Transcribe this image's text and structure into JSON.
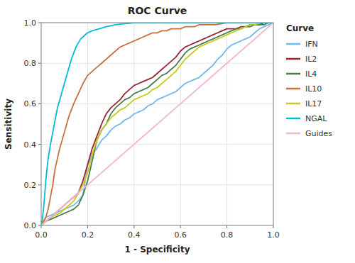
{
  "chart_data": {
    "type": "line",
    "title": "ROC Curve",
    "x_label": "1 - Specificity",
    "y_label": "Sensitivity",
    "xlim": [
      0.0,
      1.0
    ],
    "ylim": [
      0.0,
      1.0
    ],
    "xticks": [
      {
        "value": 0.0,
        "label": "0.0"
      },
      0.2,
      0.4,
      0.6,
      0.8,
      {
        "value": 1.0,
        "label": "1.0"
      }
    ],
    "yticks": [
      {
        "value": 0.0,
        "label": "0.0"
      },
      0.2,
      0.4,
      0.6,
      0.8,
      {
        "value": 1.0,
        "label": "1.0"
      }
    ],
    "grid": true,
    "legend": "right",
    "legend_title": "Curve",
    "series": [
      {
        "name": "IFN",
        "color": "#72b8e8",
        "x": [
          0,
          0.02,
          0.04,
          0.06,
          0.08,
          0.1,
          0.12,
          0.14,
          0.16,
          0.18,
          0.2,
          0.22,
          0.24,
          0.26,
          0.28,
          0.3,
          0.32,
          0.34,
          0.36,
          0.38,
          0.4,
          0.42,
          0.44,
          0.46,
          0.48,
          0.5,
          0.52,
          0.54,
          0.56,
          0.58,
          0.6,
          0.62,
          0.64,
          0.66,
          0.68,
          0.7,
          0.72,
          0.74,
          0.76,
          0.78,
          0.8,
          0.82,
          0.84,
          0.86,
          0.88,
          0.9,
          0.92,
          0.94,
          0.96,
          0.98,
          1.0
        ],
        "values": [
          0,
          0.04,
          0.05,
          0.06,
          0.07,
          0.08,
          0.09,
          0.1,
          0.12,
          0.15,
          0.3,
          0.35,
          0.38,
          0.42,
          0.44,
          0.47,
          0.49,
          0.5,
          0.52,
          0.53,
          0.55,
          0.56,
          0.57,
          0.59,
          0.6,
          0.62,
          0.63,
          0.64,
          0.65,
          0.66,
          0.68,
          0.7,
          0.71,
          0.72,
          0.73,
          0.75,
          0.77,
          0.79,
          0.82,
          0.84,
          0.87,
          0.89,
          0.9,
          0.91,
          0.92,
          0.93,
          0.95,
          0.97,
          0.98,
          0.99,
          1.0
        ]
      },
      {
        "name": "IL2",
        "color": "#9b2335",
        "x": [
          0,
          0.01,
          0.02,
          0.04,
          0.06,
          0.08,
          0.1,
          0.12,
          0.14,
          0.16,
          0.18,
          0.2,
          0.22,
          0.24,
          0.26,
          0.28,
          0.3,
          0.32,
          0.34,
          0.36,
          0.38,
          0.4,
          0.42,
          0.44,
          0.46,
          0.48,
          0.5,
          0.52,
          0.54,
          0.56,
          0.58,
          0.6,
          0.62,
          0.64,
          0.66,
          0.68,
          0.7,
          0.72,
          0.74,
          0.76,
          0.78,
          0.8,
          0.82,
          0.84,
          0.86,
          0.88,
          0.9,
          0.92,
          0.94,
          0.96,
          1.0
        ],
        "values": [
          0,
          0.01,
          0.02,
          0.04,
          0.06,
          0.08,
          0.1,
          0.12,
          0.14,
          0.16,
          0.22,
          0.3,
          0.38,
          0.44,
          0.5,
          0.55,
          0.58,
          0.6,
          0.62,
          0.65,
          0.67,
          0.69,
          0.7,
          0.71,
          0.72,
          0.73,
          0.75,
          0.77,
          0.79,
          0.81,
          0.83,
          0.86,
          0.88,
          0.89,
          0.9,
          0.91,
          0.92,
          0.93,
          0.94,
          0.95,
          0.96,
          0.97,
          0.97,
          0.97,
          0.98,
          0.98,
          0.99,
          0.99,
          0.99,
          1.0,
          1.0
        ]
      },
      {
        "name": "IL4",
        "color": "#4a7c4e",
        "x": [
          0,
          0.01,
          0.02,
          0.04,
          0.06,
          0.08,
          0.1,
          0.12,
          0.14,
          0.16,
          0.18,
          0.2,
          0.22,
          0.24,
          0.26,
          0.28,
          0.3,
          0.32,
          0.34,
          0.36,
          0.38,
          0.4,
          0.42,
          0.44,
          0.46,
          0.48,
          0.5,
          0.52,
          0.54,
          0.56,
          0.58,
          0.6,
          0.62,
          0.64,
          0.66,
          0.68,
          0.7,
          0.72,
          0.74,
          0.76,
          0.78,
          0.8,
          0.82,
          0.84,
          0.86,
          0.88,
          0.9,
          0.92,
          0.94,
          0.96,
          0.98,
          1.0
        ],
        "values": [
          0,
          0.01,
          0.02,
          0.03,
          0.04,
          0.05,
          0.06,
          0.07,
          0.08,
          0.1,
          0.15,
          0.22,
          0.32,
          0.42,
          0.47,
          0.5,
          0.55,
          0.58,
          0.6,
          0.62,
          0.63,
          0.65,
          0.66,
          0.67,
          0.68,
          0.7,
          0.72,
          0.74,
          0.75,
          0.77,
          0.79,
          0.82,
          0.85,
          0.87,
          0.88,
          0.89,
          0.9,
          0.91,
          0.92,
          0.93,
          0.94,
          0.95,
          0.96,
          0.97,
          0.97,
          0.98,
          0.98,
          0.99,
          0.99,
          0.99,
          1.0,
          1.0
        ]
      },
      {
        "name": "IL10",
        "color": "#c87040",
        "x": [
          0,
          0.01,
          0.02,
          0.03,
          0.04,
          0.05,
          0.06,
          0.08,
          0.1,
          0.12,
          0.14,
          0.16,
          0.18,
          0.2,
          0.22,
          0.24,
          0.26,
          0.28,
          0.3,
          0.32,
          0.34,
          0.36,
          0.38,
          0.4,
          0.42,
          0.44,
          0.46,
          0.48,
          0.5,
          0.52,
          0.54,
          0.56,
          0.58,
          0.6,
          0.62,
          0.64,
          0.66,
          0.68,
          0.7,
          0.75,
          0.8,
          1.0
        ],
        "values": [
          0,
          0.02,
          0.04,
          0.08,
          0.14,
          0.2,
          0.28,
          0.38,
          0.46,
          0.54,
          0.6,
          0.65,
          0.7,
          0.74,
          0.76,
          0.78,
          0.8,
          0.82,
          0.84,
          0.86,
          0.88,
          0.89,
          0.9,
          0.91,
          0.92,
          0.93,
          0.94,
          0.95,
          0.95,
          0.96,
          0.96,
          0.97,
          0.97,
          0.97,
          0.98,
          0.98,
          0.98,
          0.99,
          0.99,
          0.99,
          1.0,
          1.0
        ]
      },
      {
        "name": "IL17",
        "color": "#c8c820",
        "x": [
          0,
          0.02,
          0.04,
          0.06,
          0.08,
          0.1,
          0.12,
          0.14,
          0.16,
          0.18,
          0.2,
          0.22,
          0.24,
          0.26,
          0.28,
          0.3,
          0.32,
          0.34,
          0.36,
          0.38,
          0.4,
          0.42,
          0.44,
          0.46,
          0.48,
          0.5,
          0.52,
          0.54,
          0.56,
          0.58,
          0.6,
          0.62,
          0.64,
          0.66,
          0.68,
          0.7,
          0.72,
          0.74,
          0.76,
          0.78,
          0.8,
          0.82,
          0.84,
          0.86,
          0.88,
          0.9,
          0.92,
          0.95,
          1.0
        ],
        "values": [
          0,
          0.02,
          0.04,
          0.05,
          0.06,
          0.08,
          0.1,
          0.12,
          0.16,
          0.2,
          0.26,
          0.35,
          0.42,
          0.47,
          0.5,
          0.53,
          0.55,
          0.57,
          0.58,
          0.6,
          0.62,
          0.63,
          0.64,
          0.65,
          0.67,
          0.68,
          0.7,
          0.72,
          0.74,
          0.76,
          0.79,
          0.82,
          0.84,
          0.86,
          0.88,
          0.89,
          0.9,
          0.91,
          0.92,
          0.93,
          0.94,
          0.95,
          0.96,
          0.97,
          0.98,
          0.99,
          0.99,
          1.0,
          1.0
        ]
      },
      {
        "name": "NGAL",
        "color": "#00bcd4",
        "x": [
          0,
          0.005,
          0.01,
          0.015,
          0.02,
          0.025,
          0.03,
          0.04,
          0.05,
          0.06,
          0.07,
          0.08,
          0.09,
          0.1,
          0.11,
          0.12,
          0.13,
          0.14,
          0.15,
          0.16,
          0.17,
          0.18,
          0.2,
          0.22,
          0.25,
          0.28,
          0.32,
          0.4,
          1.0
        ],
        "values": [
          0,
          0.03,
          0.08,
          0.15,
          0.22,
          0.28,
          0.33,
          0.4,
          0.46,
          0.52,
          0.58,
          0.62,
          0.66,
          0.7,
          0.74,
          0.78,
          0.82,
          0.85,
          0.88,
          0.9,
          0.92,
          0.93,
          0.95,
          0.96,
          0.97,
          0.98,
          0.99,
          1.0,
          1.0
        ]
      },
      {
        "name": "Guides",
        "color": "#f0b8c8",
        "x": [
          0,
          1.0
        ],
        "values": [
          0,
          1.0
        ]
      }
    ]
  }
}
